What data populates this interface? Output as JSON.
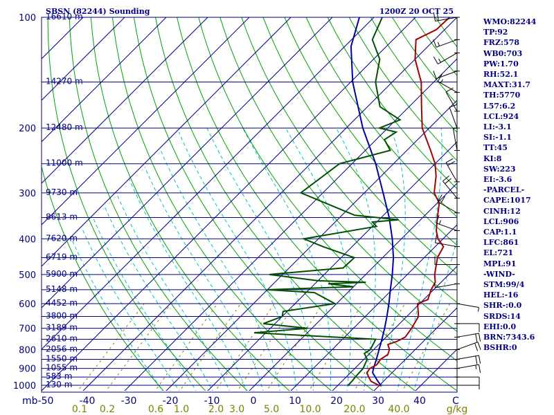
{
  "header": {
    "station": "SBSN (82244) Sounding",
    "time": "1200Z 20 OCT 25"
  },
  "colors": {
    "frame": "#000080",
    "isobar": "#000080",
    "isotherm": "#000080",
    "dry_adiabat": "#00a000",
    "moist_adiabat": "#00c0c0",
    "mixing_ratio": "#808000",
    "temperature": "#a00000",
    "dewpoint": "#005000",
    "parcel": "#0000a0",
    "wind": "#000000"
  },
  "chart_data": {
    "type": "skew-t",
    "pressure_axis_label": "mb",
    "temperature_axis_label": "C",
    "mixing_axis_label": "g/kg",
    "pressure_ticks": [
      100,
      200,
      300,
      400,
      500,
      600,
      700,
      800,
      900,
      1000
    ],
    "temperature_ticks": [
      "-50",
      "-40",
      "-30",
      "-20",
      "-10",
      "0",
      "10",
      "20",
      "30",
      "40"
    ],
    "mixing_ratio_ticks": [
      "0.1",
      "0.2",
      "0.6",
      "1.0",
      "2.0",
      "3.0",
      "5.0",
      "10.0",
      "20.0",
      "40.0"
    ],
    "ylim_mb": [
      100,
      1000
    ],
    "height_levels": [
      {
        "p": 100,
        "label": "16610 m"
      },
      {
        "p": 150,
        "label": "14270 m"
      },
      {
        "p": 200,
        "label": "12480 m"
      },
      {
        "p": 250,
        "label": "11000 m"
      },
      {
        "p": 300,
        "label": "9730 m"
      },
      {
        "p": 350,
        "label": "8613 m"
      },
      {
        "p": 400,
        "label": "7620 m"
      },
      {
        "p": 450,
        "label": "6719 m"
      },
      {
        "p": 500,
        "label": "5900 m"
      },
      {
        "p": 550,
        "label": "5148 m"
      },
      {
        "p": 600,
        "label": "4452 m"
      },
      {
        "p": 650,
        "label": "3800 m"
      },
      {
        "p": 700,
        "label": "3189 m"
      },
      {
        "p": 750,
        "label": "2610 m"
      },
      {
        "p": 800,
        "label": "2056 m"
      },
      {
        "p": 850,
        "label": "1550 m"
      },
      {
        "p": 900,
        "label": "1055 m"
      },
      {
        "p": 950,
        "label": "583 m"
      },
      {
        "p": 1000,
        "label": "130 m"
      }
    ],
    "temperature": [
      [
        1003,
        30.5
      ],
      [
        1000,
        29.8
      ],
      [
        975,
        27.0
      ],
      [
        950,
        25.4
      ],
      [
        925,
        24.0
      ],
      [
        900,
        23.6
      ],
      [
        880,
        24.4
      ],
      [
        850,
        24.0
      ],
      [
        825,
        24.6
      ],
      [
        800,
        23.8
      ],
      [
        775,
        22.2
      ],
      [
        760,
        23.6
      ],
      [
        740,
        24.6
      ],
      [
        700,
        24.0
      ],
      [
        650,
        22.8
      ],
      [
        600,
        19.5
      ],
      [
        585,
        21.0
      ],
      [
        550,
        19.4
      ],
      [
        525,
        18.6
      ],
      [
        500,
        16.6
      ],
      [
        450,
        13.2
      ],
      [
        420,
        12.0
      ],
      [
        400,
        8.8
      ],
      [
        380,
        6.4
      ],
      [
        350,
        3.5
      ],
      [
        320,
        0.5
      ],
      [
        300,
        -3.2
      ],
      [
        270,
        -6.8
      ],
      [
        250,
        -10.0
      ],
      [
        230,
        -14.3
      ],
      [
        200,
        -21.7
      ],
      [
        175,
        -27.0
      ],
      [
        150,
        -33.0
      ],
      [
        130,
        -40.0
      ],
      [
        115,
        -44.5
      ],
      [
        108,
        -42.0
      ],
      [
        100,
        -41.8
      ]
    ],
    "dewpoint": [
      [
        1003,
        22.5
      ],
      [
        975,
        22.4
      ],
      [
        950,
        22.2
      ],
      [
        900,
        22.0
      ],
      [
        850,
        20.8
      ],
      [
        820,
        18.7
      ],
      [
        800,
        19.2
      ],
      [
        750,
        18.0
      ],
      [
        720,
        -12.8
      ],
      [
        700,
        -1.0
      ],
      [
        680,
        -12.8
      ],
      [
        650,
        -10.0
      ],
      [
        630,
        -11.0
      ],
      [
        600,
        -0.4
      ],
      [
        560,
        -8.0
      ],
      [
        550,
        -20.0
      ],
      [
        540,
        0.0
      ],
      [
        530,
        -6.8
      ],
      [
        525,
        1.9
      ],
      [
        520,
        -10.0
      ],
      [
        500,
        -23.2
      ],
      [
        480,
        -7.0
      ],
      [
        450,
        -6.8
      ],
      [
        420,
        -17.0
      ],
      [
        400,
        -23.5
      ],
      [
        370,
        -9.0
      ],
      [
        360,
        -11.0
      ],
      [
        355,
        -5.3
      ],
      [
        345,
        -17.0
      ],
      [
        300,
        -35.3
      ],
      [
        250,
        -33.0
      ],
      [
        230,
        -24.0
      ],
      [
        215,
        -28.0
      ],
      [
        205,
        -27.0
      ],
      [
        200,
        -32.0
      ],
      [
        190,
        -29.0
      ],
      [
        175,
        -37.0
      ],
      [
        150,
        -44.0
      ],
      [
        130,
        -48.5
      ],
      [
        115,
        -55.0
      ],
      [
        100,
        -58.0
      ]
    ],
    "parcel": [
      [
        1003,
        30.5
      ],
      [
        970,
        28.3
      ],
      [
        924,
        25.3
      ],
      [
        900,
        24.5
      ],
      [
        850,
        23.0
      ],
      [
        800,
        21.3
      ],
      [
        750,
        19.5
      ],
      [
        700,
        17.5
      ],
      [
        650,
        15.2
      ],
      [
        600,
        12.6
      ],
      [
        550,
        9.6
      ],
      [
        500,
        6.4
      ],
      [
        450,
        2.6
      ],
      [
        400,
        -2.2
      ],
      [
        350,
        -8.1
      ],
      [
        300,
        -15.5
      ],
      [
        250,
        -24.3
      ],
      [
        200,
        -36.0
      ],
      [
        150,
        -49.5
      ],
      [
        120,
        -58.5
      ],
      [
        100,
        -63.5
      ]
    ],
    "wind_levels": [
      {
        "p": 100,
        "dir": 260,
        "spd": 20
      },
      {
        "p": 115,
        "dir": 250,
        "spd": 15
      },
      {
        "p": 125,
        "dir": 240,
        "spd": 15
      },
      {
        "p": 140,
        "dir": 250,
        "spd": 10
      },
      {
        "p": 160,
        "dir": 300,
        "spd": 15
      },
      {
        "p": 180,
        "dir": 330,
        "spd": 10
      },
      {
        "p": 200,
        "dir": 340,
        "spd": 10
      },
      {
        "p": 230,
        "dir": 350,
        "spd": 5
      },
      {
        "p": 280,
        "dir": 330,
        "spd": 20
      },
      {
        "p": 310,
        "dir": 320,
        "spd": 20
      },
      {
        "p": 340,
        "dir": 300,
        "spd": 20
      },
      {
        "p": 380,
        "dir": 290,
        "spd": 15
      },
      {
        "p": 420,
        "dir": 280,
        "spd": 10
      },
      {
        "p": 470,
        "dir": 270,
        "spd": 10
      },
      {
        "p": 530,
        "dir": 260,
        "spd": 5
      },
      {
        "p": 600,
        "dir": 100,
        "spd": 5
      },
      {
        "p": 680,
        "dir": 90,
        "spd": 10
      },
      {
        "p": 740,
        "dir": 80,
        "spd": 20
      },
      {
        "p": 800,
        "dir": 70,
        "spd": 20
      },
      {
        "p": 850,
        "dir": 80,
        "spd": 20
      },
      {
        "p": 900,
        "dir": 80,
        "spd": 15
      },
      {
        "p": 950,
        "dir": 90,
        "spd": 10
      },
      {
        "p": 1000,
        "dir": 90,
        "spd": 5
      }
    ]
  },
  "indices": [
    "WMO:82244",
    "TP:92",
    "FRZ:578",
    "WB0:703",
    "PW:1.70",
    "RH:52.1",
    "MAXT:31.7",
    "TH:5770",
    "L57:6.2",
    "LCL:924",
    "LI:-3.1",
    "SI:-1.1",
    "TT:45",
    "KI:8",
    "SW:223",
    "EI:-3.6",
    "-PARCEL-",
    "CAPE:1017",
    "CINH:12",
    "LCL:906",
    "CAP:1.1",
    "LFC:861",
    "EL:721",
    "MPL:91",
    "-WIND-",
    "STM:99/4",
    "HEL:-16",
    "SHR-:0.0",
    "SRDS:14",
    "EHI:0.0",
    "BRN:7343.6",
    "BSHR:0"
  ]
}
